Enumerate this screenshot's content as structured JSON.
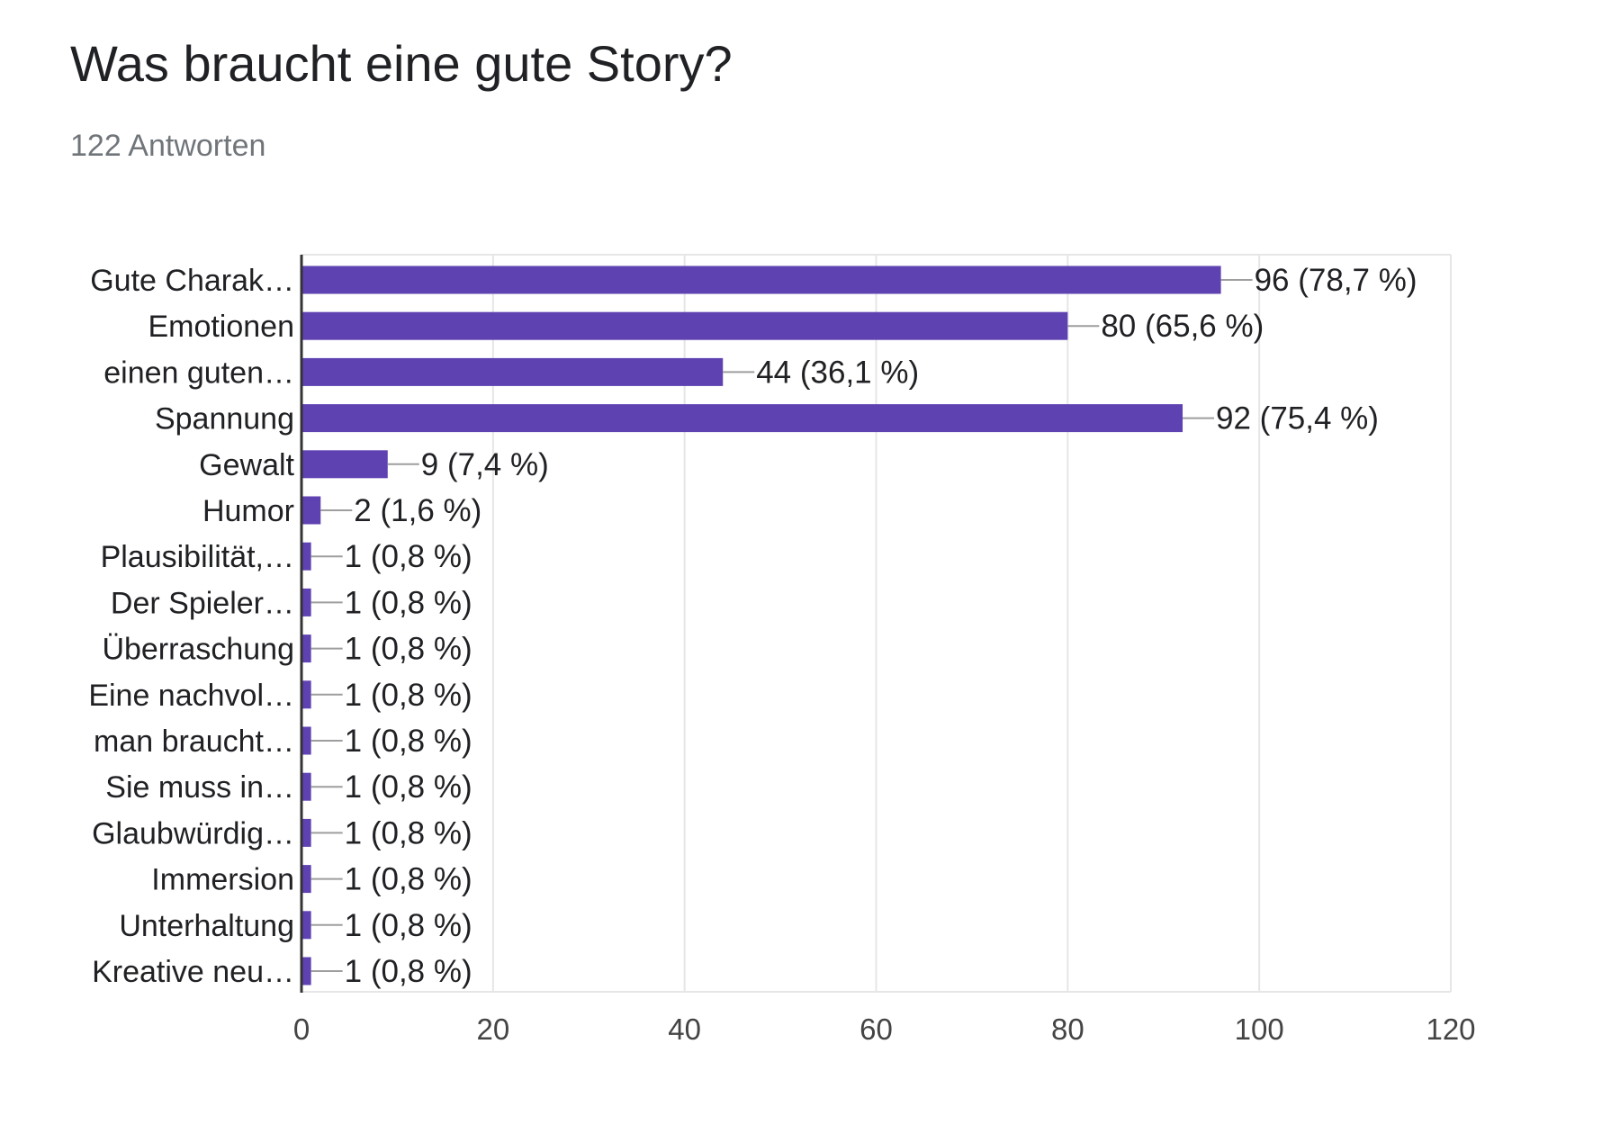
{
  "title": "Was braucht eine gute Story?",
  "subtitle": "122 Antworten",
  "colors": {
    "bar": "#5f42b2",
    "grid": "#e6e6e6",
    "axis": "#333333",
    "leader": "#9e9e9e",
    "text": "#202124",
    "tick_text": "#444444"
  },
  "chart_data": {
    "type": "bar",
    "orientation": "horizontal",
    "categories": [
      "Gute Charak…",
      "Emotionen",
      "einen guten…",
      "Spannung",
      "Gewalt",
      "Humor",
      "Plausibilität,…",
      "Der Spieler…",
      "Überraschung",
      "Eine nachvol…",
      "man braucht…",
      "Sie muss in…",
      "Glaubwürdig…",
      "Immersion",
      "Unterhaltung",
      "Kreative neu…"
    ],
    "values": [
      96,
      80,
      44,
      92,
      9,
      2,
      1,
      1,
      1,
      1,
      1,
      1,
      1,
      1,
      1,
      1
    ],
    "data_labels": [
      "96 (78,7 %)",
      "80 (65,6 %)",
      "44 (36,1 %)",
      "92 (75,4 %)",
      "9 (7,4 %)",
      "2 (1,6 %)",
      "1 (0,8 %)",
      "1 (0,8 %)",
      "1 (0,8 %)",
      "1 (0,8 %)",
      "1 (0,8 %)",
      "1 (0,8 %)",
      "1 (0,8 %)",
      "1 (0,8 %)",
      "1 (0,8 %)",
      "1 (0,8 %)"
    ],
    "xticks": [
      0,
      20,
      40,
      60,
      80,
      100,
      120
    ],
    "xlim": [
      0,
      120
    ],
    "grid": true,
    "legend": "none"
  }
}
